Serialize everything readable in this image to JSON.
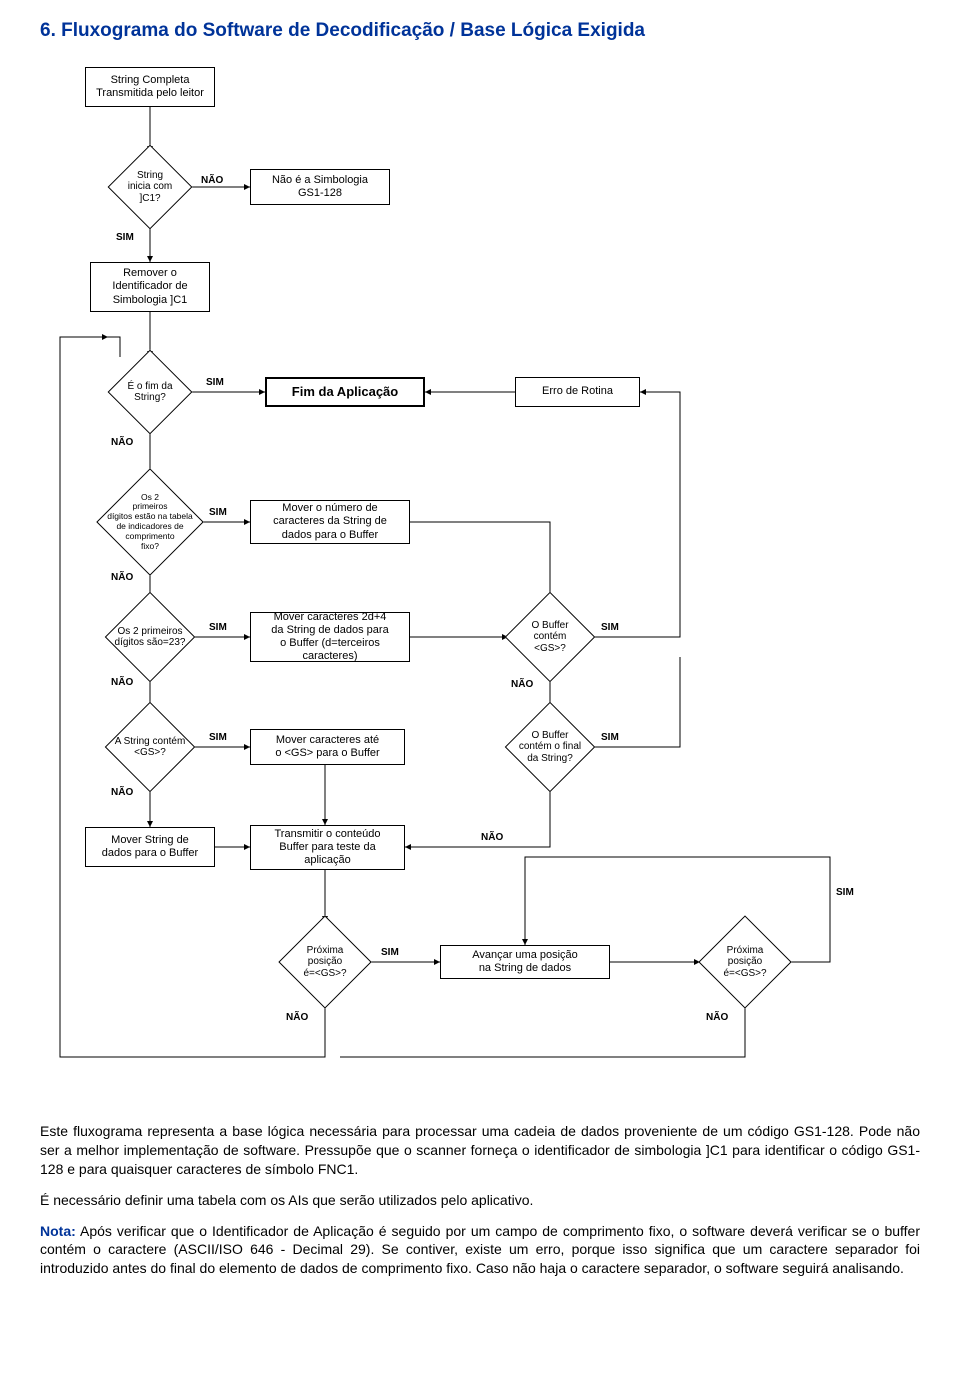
{
  "title": "6. Fluxograma do Software de Decodificação / Base Lógica Exigida",
  "labels": {
    "sim": "SIM",
    "nao": "NÃO"
  },
  "nodes": {
    "start": "String Completa\nTransmitida pelo leitor",
    "d1": "String\ninicia com\n]C1?",
    "n_notgs1": "Não é a Simbologia\nGS1-128",
    "n_remove": "Remover o\nIdentificador de\nSimbologia ]C1",
    "d_end": "É o fim da\nString?",
    "n_fim": "Fim da Aplicação",
    "n_erro": "Erro de Rotina",
    "d_fixo": "Os 2\nprimeiros\ndígitos estão na tabela\nde indicadores de\ncomprimento\nfixo?",
    "n_movefixo": "Mover o número de\ncaracteres da String de\ndados para o Buffer",
    "d_23": "Os 2 primeiros\ndígitos são=23?",
    "n_move23": "Mover caracteres 2d+4\nda String de dados para\no Buffer (d=terceiros\ncaracteres)",
    "d_bufgs": "O Buffer\ncontém\n<GS>?",
    "d_gs": "A String contém\n<GS>?",
    "n_movegs": "Mover caracteres até\no <GS> para o Buffer",
    "d_bufend": "O Buffer\ncontém o final\nda String?",
    "n_moverstr": "Mover String de\ndados para o Buffer",
    "n_transmitir": "Transmitir o conteúdo\nBuffer para teste da\naplicação",
    "d_prox1": "Próxima\nposição\né=<GS>?",
    "n_avancar": "Avançar uma posição\nna String de dados",
    "d_prox2": "Próxima\nposição\né=<GS>?"
  },
  "paragraphs": {
    "p1": "Este fluxograma representa a base lógica necessária para processar uma cadeia de dados proveniente de um código GS1-128. Pode não ser a melhor implementação de software. Pressupõe que o scanner forneça o identificador de simbologia ]C1 para identificar o código GS1-128 e para quaisquer caracteres de símbolo FNC1.",
    "p2": "É necessário definir uma tabela com os AIs que serão utilizados pelo aplicativo.",
    "p3a": "Nota:",
    "p3b": " Após verificar que o Identificador de Aplicação é seguido por um campo de comprimento fixo, o software deverá verificar se o buffer contém o caractere (ASCII/ISO 646 - Decimal 29). Se contiver, existe um erro, porque isso significa que um caractere separador foi introduzido antes do final do elemento de dados de comprimento fixo. Caso não haja o caractere separador, o software seguirá analisando."
  },
  "colors": {
    "title": "#003399",
    "line": "#000000"
  }
}
